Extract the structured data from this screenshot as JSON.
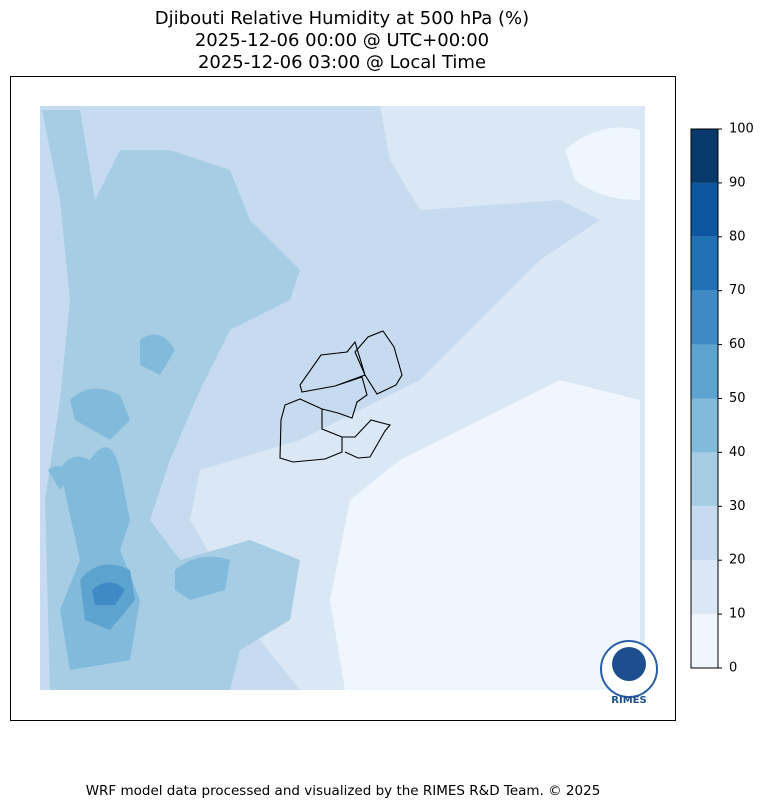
{
  "title": [
    "Djibouti Relative Humidity at 500 hPa (%)",
    "2025-12-06 00:00 @ UTC+00:00",
    "2025-12-06 03:00 @ Local Time"
  ],
  "colorbar": {
    "ticks": [
      0,
      10,
      20,
      30,
      40,
      50,
      60,
      70,
      80,
      90,
      100
    ],
    "colors": [
      "#f0f6fd",
      "#dae8f5",
      "#c6dbef",
      "#a6cde3",
      "#82badb",
      "#5da3d0",
      "#3f8ac4",
      "#2171b5",
      "#0d57a1",
      "#08396b"
    ]
  },
  "logo": "RIMES",
  "footer": "WRF model data processed and visualized by the RIMES R&D Team. © 2025"
}
